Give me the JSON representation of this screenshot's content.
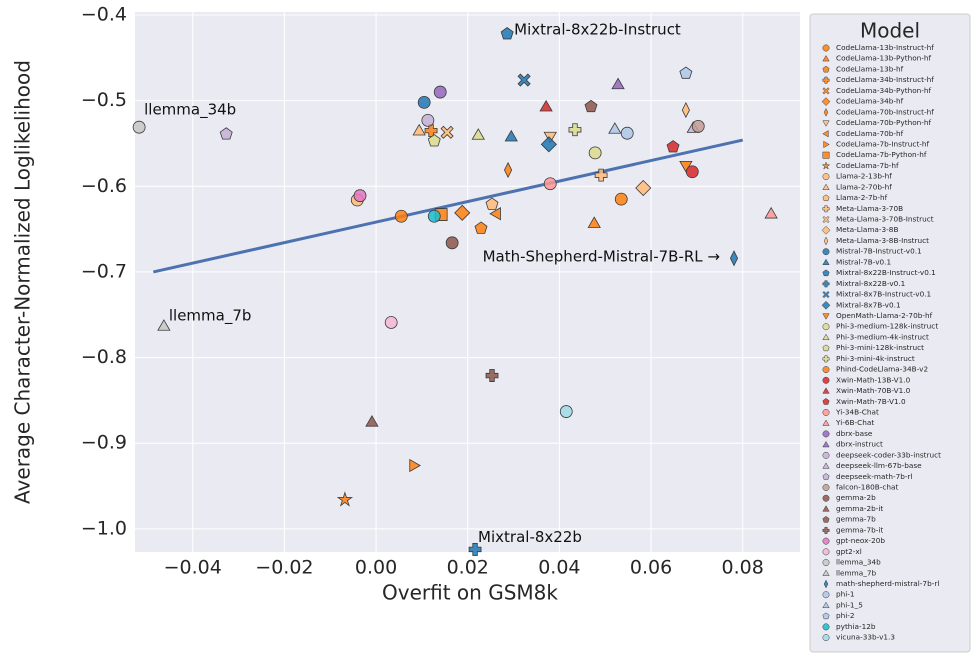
{
  "chart_data": {
    "type": "scatter",
    "x_label": "Overfit on GSM8k",
    "y_label": "Average Character-Normalized Loglikelihood",
    "legend_title": "Model",
    "xlim": [
      -0.0526,
      0.0925
    ],
    "ylim": [
      -1.027,
      -0.3965
    ],
    "xticks": [
      {
        "value": -0.04,
        "label": "−0.04"
      },
      {
        "value": -0.02,
        "label": "−0.02"
      },
      {
        "value": 0,
        "label": "0.00"
      },
      {
        "value": 0.02,
        "label": "0.02"
      },
      {
        "value": 0.04,
        "label": "0.04"
      },
      {
        "value": 0.06,
        "label": "0.06"
      },
      {
        "value": 0.08,
        "label": "0.08"
      }
    ],
    "yticks": [
      {
        "value": -0.4,
        "label": "−0.4"
      },
      {
        "value": -0.5,
        "label": "−0.5"
      },
      {
        "value": -0.6,
        "label": "−0.6"
      },
      {
        "value": -0.7,
        "label": "−0.7"
      },
      {
        "value": -0.8,
        "label": "−0.8"
      },
      {
        "value": -0.9,
        "label": "−0.9"
      },
      {
        "value": -1.0,
        "label": "−1.0"
      }
    ],
    "grid": true,
    "trend": {
      "color": "#4c72b0",
      "x": [
        -0.0486,
        0.08
      ],
      "values": [
        -0.7,
        -0.546
      ]
    },
    "series": [
      {
        "name": "CodeLlama-13b-Instruct-hf",
        "color": "#ff7f0e",
        "marker": "circle",
        "x": [
          0.0055
        ],
        "values": [
          -0.635
        ]
      },
      {
        "name": "CodeLlama-13b-Python-hf",
        "color": "#ff7f0e",
        "marker": "triangle-up",
        "x": [
          0.0476
        ],
        "values": [
          -0.643
        ]
      },
      {
        "name": "CodeLlama-13b-hf",
        "color": "#ff7f0e",
        "marker": "pentagon",
        "x": [
          0.0229
        ],
        "values": [
          -0.649
        ]
      },
      {
        "name": "CodeLlama-34b-Instruct-hf",
        "color": "#ff7f0e",
        "marker": "plus",
        "x": [
          0.012
        ],
        "values": [
          -0.535
        ]
      },
      {
        "name": "CodeLlama-34b-Python-hf",
        "color": "#ff7f0e",
        "marker": "x",
        "x": [
          null
        ],
        "values": [
          null
        ]
      },
      {
        "name": "CodeLlama-34b-hf",
        "color": "#ff7f0e",
        "marker": "diamond",
        "x": [
          0.0188
        ],
        "values": [
          -0.631
        ]
      },
      {
        "name": "CodeLlama-70b-Instruct-hf",
        "color": "#ff7f0e",
        "marker": "thin-diamond",
        "x": [
          0.0288
        ],
        "values": [
          -0.581
        ]
      },
      {
        "name": "CodeLlama-70b-Python-hf",
        "color": "#ffbb78",
        "marker": "triangle-down",
        "x": [
          0.038
        ],
        "values": [
          -0.542
        ]
      },
      {
        "name": "CodeLlama-70b-hf",
        "color": "#ff7f0e",
        "marker": "triangle-left",
        "x": [
          0.0262
        ],
        "values": [
          -0.632
        ]
      },
      {
        "name": "CodeLlama-7b-Instruct-hf",
        "color": "#ff7f0e",
        "marker": "triangle-right",
        "x": [
          0.0083
        ],
        "values": [
          -0.926
        ]
      },
      {
        "name": "CodeLlama-7b-Python-hf",
        "color": "#ff7f0e",
        "marker": "square",
        "x": [
          0.0142
        ],
        "values": [
          -0.633
        ]
      },
      {
        "name": "CodeLlama-7b-hf",
        "color": "#ff7f0e",
        "marker": "star",
        "x": [
          -0.0068
        ],
        "values": [
          -0.966
        ]
      },
      {
        "name": "Llama-2-13b-hf",
        "color": "#ffbb78",
        "marker": "circle",
        "x": [
          -0.0041
        ],
        "values": [
          -0.616
        ]
      },
      {
        "name": "Llama-2-70b-hf",
        "color": "#ffbb78",
        "marker": "triangle-up",
        "x": [
          0.0094
        ],
        "values": [
          -0.535
        ]
      },
      {
        "name": "Llama-2-7b-hf",
        "color": "#ffbb78",
        "marker": "pentagon",
        "x": [
          0.0253
        ],
        "values": [
          -0.621
        ]
      },
      {
        "name": "Meta-Llama-3-70B",
        "color": "#ffbb78",
        "marker": "plus",
        "x": [
          0.0491
        ],
        "values": [
          -0.587
        ]
      },
      {
        "name": "Meta-Llama-3-70B-Instruct",
        "color": "#ffbb78",
        "marker": "x",
        "x": [
          0.0155
        ],
        "values": [
          -0.537
        ]
      },
      {
        "name": "Meta-Llama-3-8B",
        "color": "#ffbb78",
        "marker": "diamond",
        "x": [
          0.0583
        ],
        "values": [
          -0.602
        ]
      },
      {
        "name": "Meta-Llama-3-8B-Instruct",
        "color": "#ffbb78",
        "marker": "thin-diamond",
        "x": [
          0.0676
        ],
        "values": [
          -0.511
        ]
      },
      {
        "name": "Mistral-7B-Instruct-v0.1",
        "color": "#1f77b4",
        "marker": "circle",
        "x": [
          0.0105
        ],
        "values": [
          -0.502
        ]
      },
      {
        "name": "Mistral-7B-v0.1",
        "color": "#1f77b4",
        "marker": "triangle-up",
        "x": [
          0.0295
        ],
        "values": [
          -0.542
        ]
      },
      {
        "name": "Mixtral-8x22B-Instruct-v0.1",
        "color": "#1f77b4",
        "marker": "pentagon",
        "x": [
          0.0286
        ],
        "values": [
          -0.422
        ],
        "annotation": "Mixtral-8x22b-Instruct"
      },
      {
        "name": "Mixtral-8x22B-v0.1",
        "color": "#1f77b4",
        "marker": "plus",
        "x": [
          0.0216
        ],
        "values": [
          -1.024
        ],
        "annotation": "Mixtral-8x22b"
      },
      {
        "name": "Mixtral-8x7B-Instruct-v0.1",
        "color": "#1f77b4",
        "marker": "x",
        "x": [
          0.0323
        ],
        "values": [
          -0.476
        ]
      },
      {
        "name": "Mixtral-8x7B-v0.1",
        "color": "#1f77b4",
        "marker": "diamond",
        "x": [
          0.0377
        ],
        "values": [
          -0.551
        ]
      },
      {
        "name": "OpenMath-Llama-2-70b-hf",
        "color": "#ff7f0e",
        "marker": "triangle-down",
        "x": [
          0.0676
        ],
        "values": [
          -0.576
        ]
      },
      {
        "name": "Phi-3-medium-128k-instruct",
        "color": "#dbdb8d",
        "marker": "circle",
        "x": [
          0.0478
        ],
        "values": [
          -0.561
        ]
      },
      {
        "name": "Phi-3-medium-4k-instruct",
        "color": "#dbdb8d",
        "marker": "triangle-up",
        "x": [
          0.0223
        ],
        "values": [
          -0.54
        ]
      },
      {
        "name": "Phi-3-mini-128k-instruct",
        "color": "#dbdb8d",
        "marker": "pentagon",
        "x": [
          0.0127
        ],
        "values": [
          -0.547
        ]
      },
      {
        "name": "Phi-3-mini-4k-instruct",
        "color": "#dbdb8d",
        "marker": "plus",
        "x": [
          0.0434
        ],
        "values": [
          -0.534
        ]
      },
      {
        "name": "Phind-CodeLlama-34B-v2",
        "color": "#ff7f0e",
        "marker": "circle",
        "x": [
          0.0535
        ],
        "values": [
          -0.615
        ]
      },
      {
        "name": "Xwin-Math-13B-V1.0",
        "color": "#d62728",
        "marker": "circle",
        "x": [
          0.069
        ],
        "values": [
          -0.583
        ]
      },
      {
        "name": "Xwin-Math-70B-V1.0",
        "color": "#d62728",
        "marker": "triangle-up",
        "x": [
          0.0371
        ],
        "values": [
          -0.507
        ]
      },
      {
        "name": "Xwin-Math-7B-V1.0",
        "color": "#d62728",
        "marker": "pentagon",
        "x": [
          0.0648
        ],
        "values": [
          -0.554
        ]
      },
      {
        "name": "Yi-34B-Chat",
        "color": "#ff9896",
        "marker": "circle",
        "x": [
          0.038
        ],
        "values": [
          -0.597
        ]
      },
      {
        "name": "Yi-6B-Chat",
        "color": "#ff9896",
        "marker": "triangle-up",
        "x": [
          0.0862
        ],
        "values": [
          -0.632
        ]
      },
      {
        "name": "dbrx-base",
        "color": "#9467bd",
        "marker": "circle",
        "x": [
          0.014
        ],
        "values": [
          -0.49
        ]
      },
      {
        "name": "dbrx-instruct",
        "color": "#9467bd",
        "marker": "triangle-up",
        "x": [
          0.0528
        ],
        "values": [
          -0.481
        ]
      },
      {
        "name": "deepseek-coder-33b-instruct",
        "color": "#c5b0d5",
        "marker": "circle",
        "x": [
          0.0113
        ],
        "values": [
          -0.523
        ]
      },
      {
        "name": "deepseek-llm-67b-base",
        "color": "#c5b0d5",
        "marker": "triangle-up",
        "x": [
          0.0692
        ],
        "values": [
          -0.532
        ]
      },
      {
        "name": "deepseek-math-7b-rl",
        "color": "#c5b0d5",
        "marker": "pentagon",
        "x": [
          -0.0327
        ],
        "values": [
          -0.539
        ]
      },
      {
        "name": "falcon-180B-chat",
        "color": "#c49c94",
        "marker": "circle",
        "x": [
          0.0703
        ],
        "values": [
          -0.53
        ]
      },
      {
        "name": "gemma-2b",
        "color": "#8c564b",
        "marker": "circle",
        "x": [
          0.0166
        ],
        "values": [
          -0.666
        ]
      },
      {
        "name": "gemma-2b-it",
        "color": "#8c564b",
        "marker": "triangle-up",
        "x": [
          -0.0009
        ],
        "values": [
          -0.875
        ]
      },
      {
        "name": "gemma-7b",
        "color": "#8c564b",
        "marker": "pentagon",
        "x": [
          0.0469
        ],
        "values": [
          -0.507
        ]
      },
      {
        "name": "gemma-7b-it",
        "color": "#8c564b",
        "marker": "plus",
        "x": [
          0.0253
        ],
        "values": [
          -0.821
        ]
      },
      {
        "name": "gpt-neox-20b",
        "color": "#e377c2",
        "marker": "circle",
        "x": [
          -0.0035
        ],
        "values": [
          -0.611
        ]
      },
      {
        "name": "gpt2-xl",
        "color": "#f7b6d2",
        "marker": "circle",
        "x": [
          0.0033
        ],
        "values": [
          -0.759
        ]
      },
      {
        "name": "llemma_34b",
        "color": "#c7c7c7",
        "marker": "circle",
        "x": [
          -0.0517
        ],
        "values": [
          -0.531
        ],
        "annotation": "llemma_34b"
      },
      {
        "name": "llemma_7b",
        "color": "#c7c7c7",
        "marker": "triangle-up",
        "x": [
          -0.0463
        ],
        "values": [
          -0.763
        ],
        "annotation": "llemma_7b"
      },
      {
        "name": "math-shepherd-mistral-7b-rl",
        "color": "#1f77b4",
        "marker": "thin-diamond",
        "x": [
          0.0781
        ],
        "values": [
          -0.684
        ],
        "annotation": "Math-Shepherd-Mistral-7B-RL →"
      },
      {
        "name": "phi-1",
        "color": "#aec7e8",
        "marker": "circle",
        "x": [
          0.0548
        ],
        "values": [
          -0.538
        ]
      },
      {
        "name": "phi-1_5",
        "color": "#aec7e8",
        "marker": "triangle-up",
        "x": [
          0.0521
        ],
        "values": [
          -0.533
        ]
      },
      {
        "name": "phi-2",
        "color": "#aec7e8",
        "marker": "pentagon",
        "x": [
          0.0676
        ],
        "values": [
          -0.468
        ]
      },
      {
        "name": "pythia-12b",
        "color": "#17becf",
        "marker": "circle",
        "x": [
          0.0127
        ],
        "values": [
          -0.635
        ]
      },
      {
        "name": "vicuna-33b-v1.3",
        "color": "#9edae5",
        "marker": "circle",
        "x": [
          0.0415
        ],
        "values": [
          -0.863
        ]
      }
    ]
  }
}
